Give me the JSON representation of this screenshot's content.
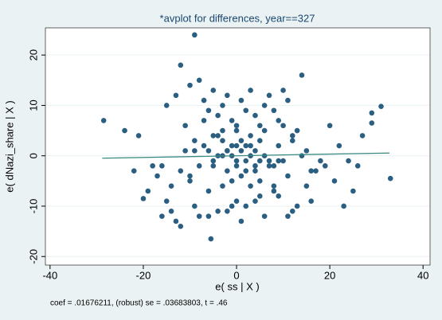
{
  "chart_data": {
    "type": "scatter",
    "title": "*avplot for differences, year==327",
    "x_label": "e( ss | X )",
    "y_label": "e( dNazi_share | X )",
    "note": "coef = .01676211, (robust) se = .03683803, t = .46",
    "color": "#2b5f82",
    "x": [
      -9,
      -12,
      -28.5,
      -21,
      -18,
      -5.5,
      -12,
      -14,
      31,
      29,
      33,
      25,
      14,
      20,
      29,
      -19,
      -20,
      -15,
      -13,
      -10,
      -8,
      -7,
      -6,
      -5,
      -4,
      -3,
      -2,
      -1,
      0,
      1,
      2,
      3,
      4,
      5,
      6,
      7,
      8,
      9,
      10,
      11,
      12,
      13,
      -16,
      -11,
      -9,
      -7,
      -4,
      -2,
      1,
      3,
      6,
      9,
      12,
      15,
      18,
      -17,
      -12,
      -8,
      -5,
      -3,
      0,
      2,
      4,
      7,
      10,
      14,
      17,
      22,
      -14,
      -10,
      -6,
      -3,
      -1,
      1,
      3,
      5,
      8,
      11,
      16,
      19,
      24,
      -15,
      -9,
      -6,
      -2,
      0,
      2,
      5,
      8,
      12,
      21,
      -13,
      -8,
      -4,
      -1,
      1,
      4,
      6,
      9,
      13,
      -11,
      -7,
      -3,
      0,
      3,
      6,
      10,
      15,
      -10,
      -5,
      -2,
      2,
      5,
      9,
      -9,
      -4,
      0,
      4,
      8,
      -6,
      -1,
      3,
      7,
      16,
      26,
      -24,
      -22,
      23,
      27,
      11,
      -16,
      -1,
      1,
      2,
      -3,
      4,
      -2,
      0,
      5,
      -5
    ],
    "values": [
      24,
      18,
      7,
      4,
      -2,
      -16.5,
      -14,
      -11,
      9.8,
      8.5,
      -4.5,
      -7,
      16,
      6,
      6.5,
      -7,
      -8.5,
      10,
      12,
      14,
      15,
      11,
      9,
      13,
      8,
      10,
      12,
      7,
      5,
      11,
      9,
      13,
      8,
      6,
      10,
      12,
      9,
      7,
      13,
      11,
      3,
      5,
      -2,
      1,
      3,
      2,
      4,
      1,
      3,
      2,
      0,
      2,
      4,
      1,
      -1,
      -4,
      -3,
      -2,
      -1,
      0,
      -2,
      -1,
      -3,
      -2,
      -1,
      0,
      -3,
      2,
      -6,
      -5,
      -7,
      -6,
      -5,
      -4,
      -6,
      -5,
      -7,
      -4,
      -3,
      -2,
      -1,
      -9,
      -10,
      -12,
      -11,
      -9,
      -10,
      -8,
      -6,
      -11,
      -5,
      -13,
      -12,
      -11,
      -10,
      -13,
      -9,
      -12,
      -8,
      -10,
      6,
      7,
      5,
      6,
      4,
      5,
      6,
      -6,
      -4,
      -2,
      1,
      2,
      3,
      -1,
      1,
      0,
      -1,
      -2,
      -2,
      1,
      2,
      0,
      -1,
      -9,
      -2,
      5,
      -3,
      -10,
      4,
      -12,
      -12,
      0,
      1,
      -3,
      3,
      1,
      -3,
      2,
      -1,
      4
    ],
    "fit": {
      "color": "#3a8a80",
      "x": [
        -28.8,
        32.8
      ],
      "values": [
        -0.48,
        0.55
      ]
    },
    "xlim": [
      -41,
      41.5
    ],
    "ylim": [
      -21.7,
      25.4
    ],
    "xticks": [
      -40,
      -20,
      0,
      20,
      40
    ],
    "yticks": [
      -20,
      -10,
      0,
      10,
      20
    ],
    "grid": true
  }
}
